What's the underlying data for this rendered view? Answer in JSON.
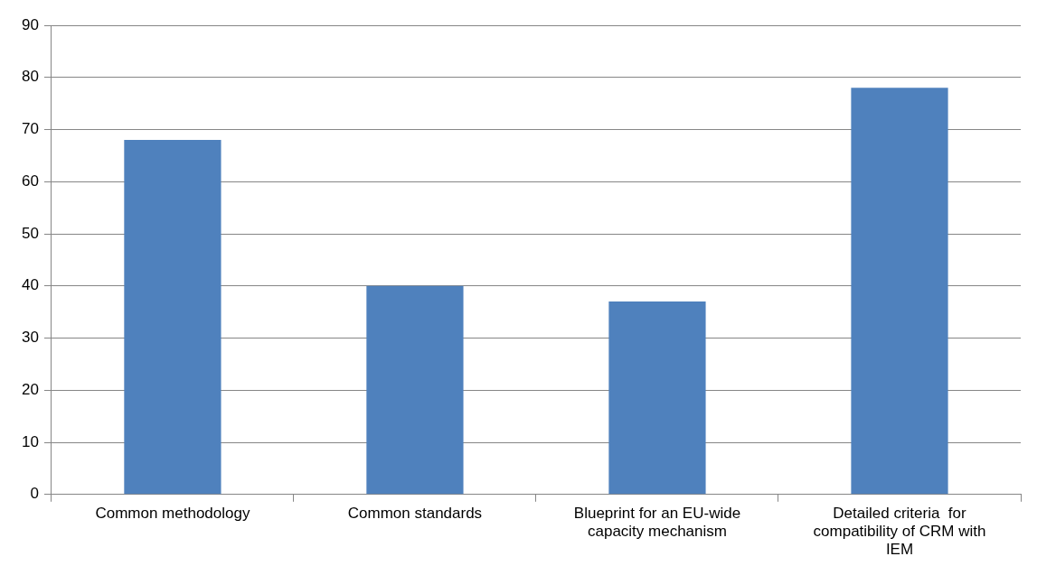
{
  "chart_data": {
    "type": "bar",
    "categories": [
      "Common methodology",
      "Common standards",
      "Blueprint for an EU-wide capacity mechanism",
      "Detailed criteria  for compatibility of CRM with IEM"
    ],
    "values": [
      68,
      40,
      37,
      78
    ],
    "color": "#4f81bd",
    "ylim": [
      0,
      90
    ],
    "yticks": [
      0,
      10,
      20,
      30,
      40,
      50,
      60,
      70,
      80,
      90
    ],
    "grid": "y",
    "legend": false
  }
}
